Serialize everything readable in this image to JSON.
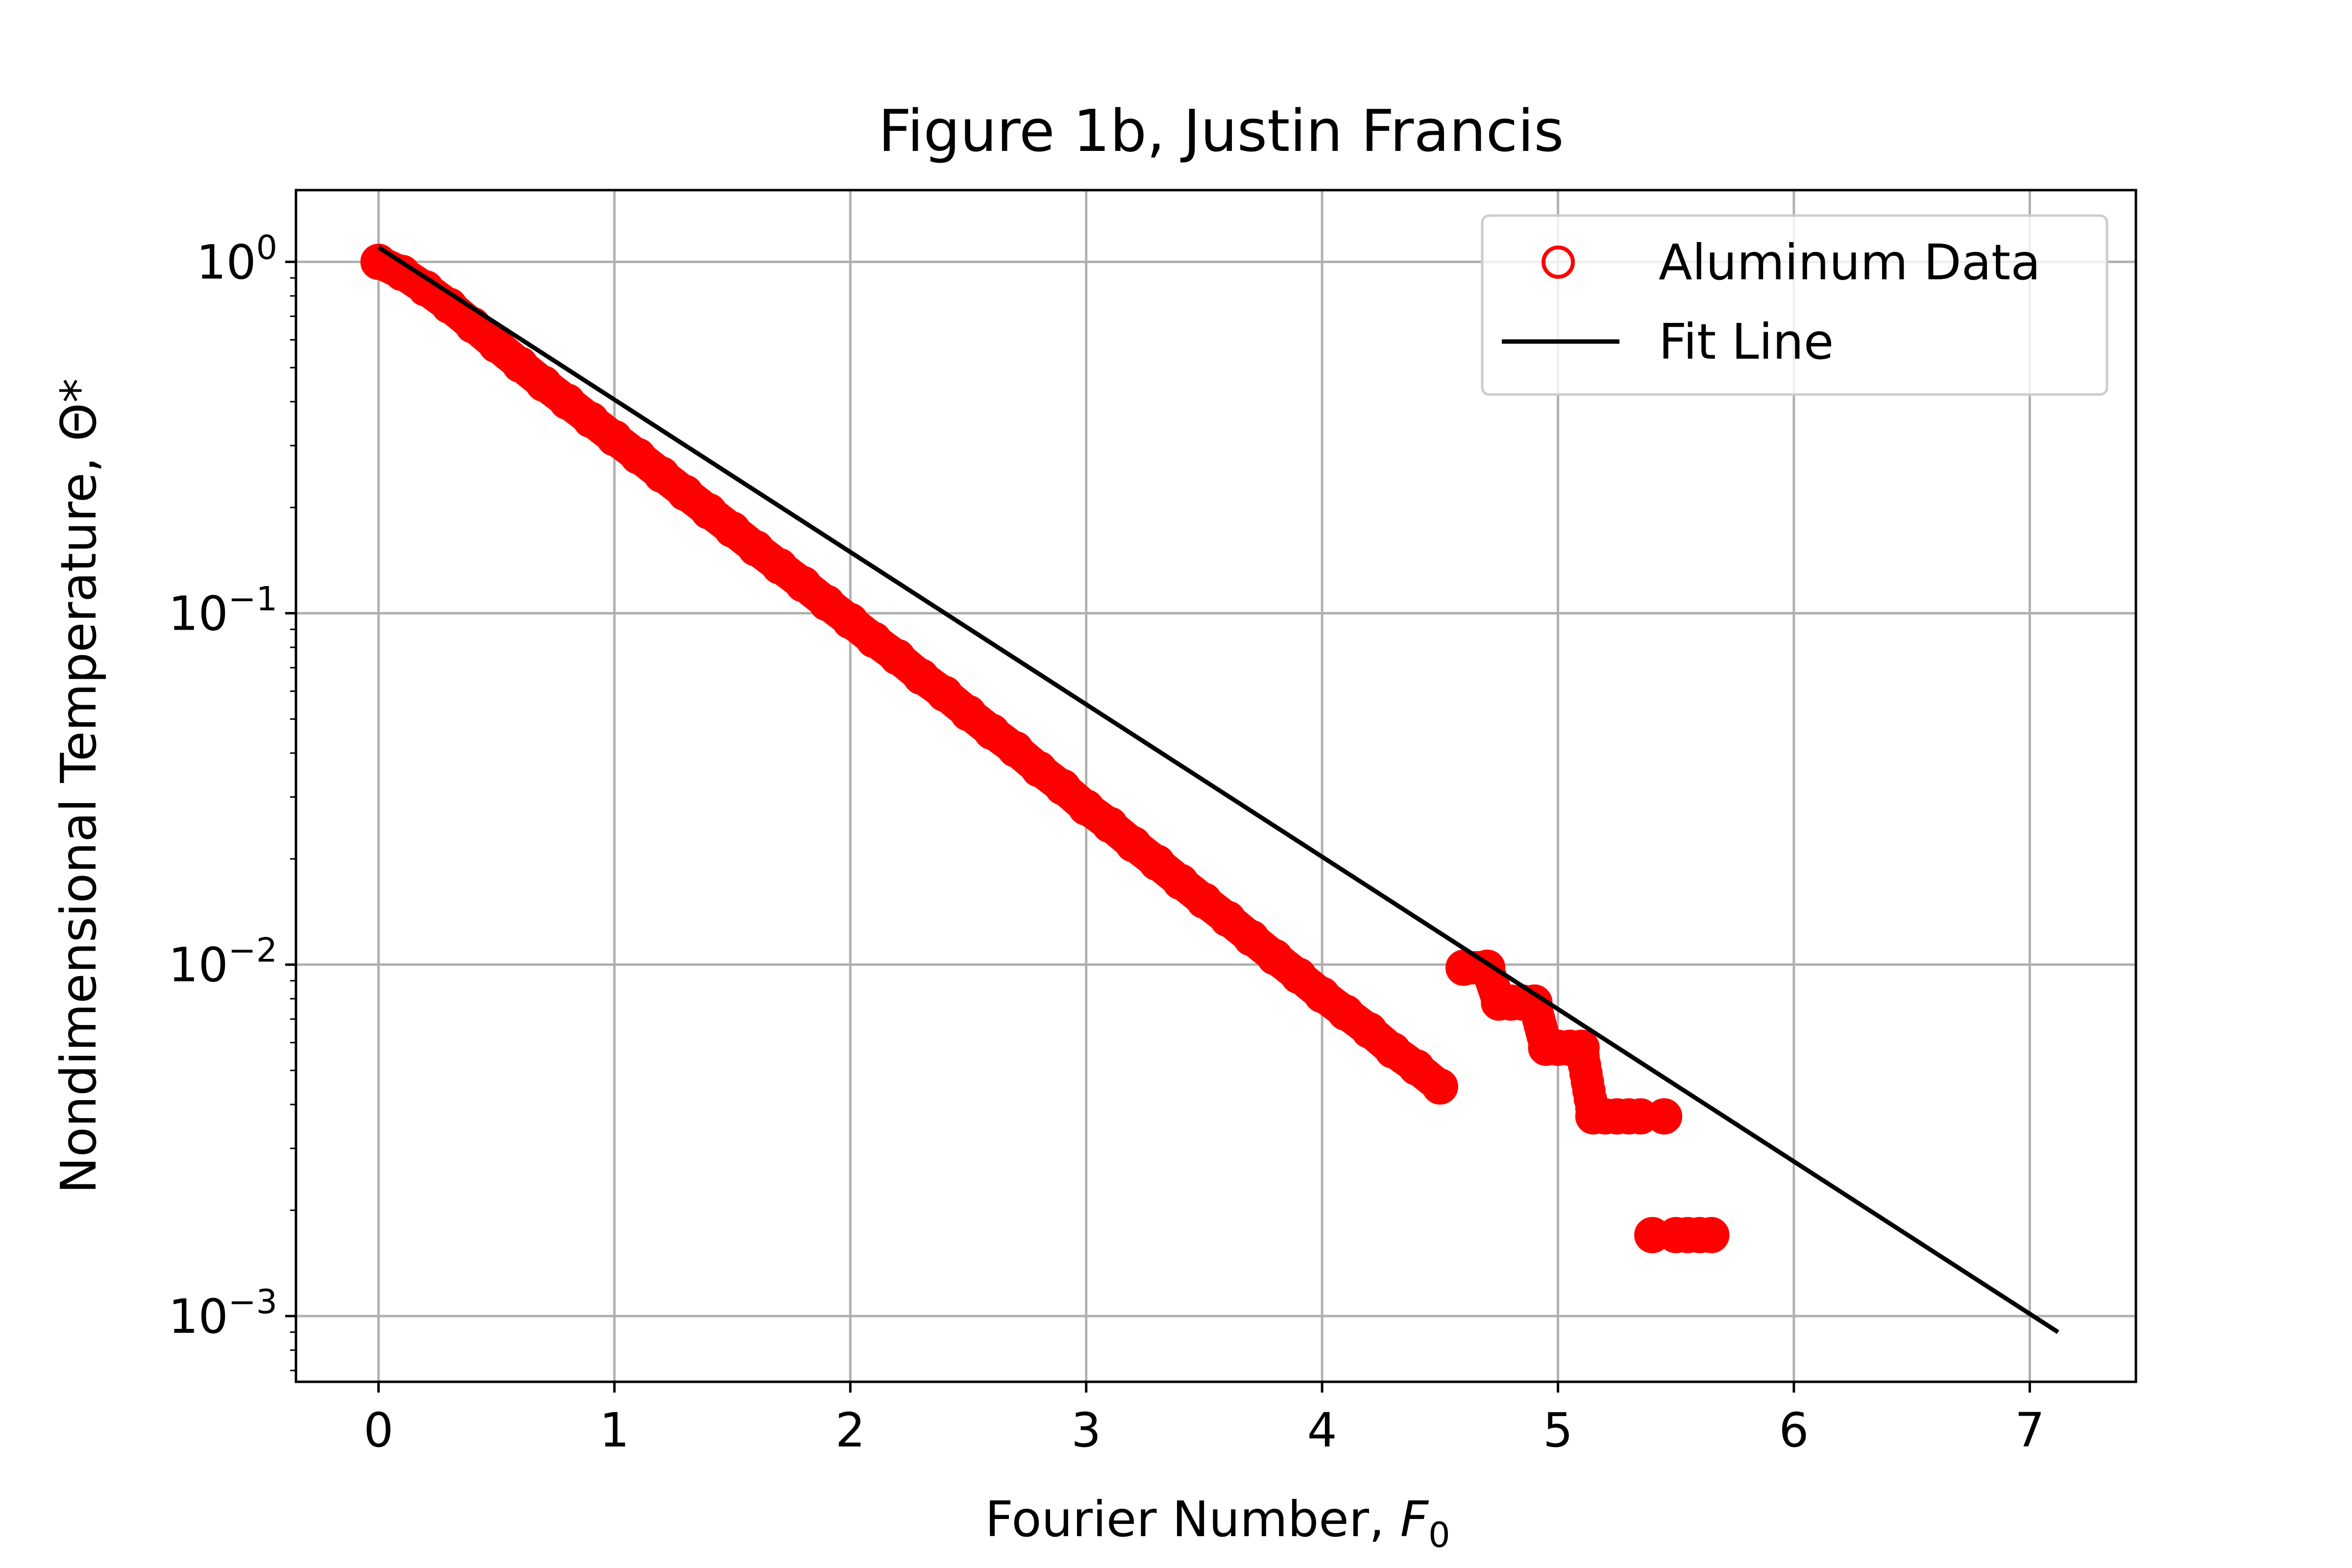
{
  "chart_data": {
    "type": "scatter",
    "title": "Figure 1b, Justin Francis",
    "xlabel": "Fourier Number, ",
    "xlabel_symbol": "F",
    "xlabel_subscript": "0",
    "ylabel": "Nondimensional Temperature, Θ*",
    "x_scale": "linear",
    "y_scale": "log",
    "xlim": [
      -0.35,
      7.45
    ],
    "ylim": [
      0.00065,
      1.6
    ],
    "x_ticks": [
      0,
      1,
      2,
      3,
      4,
      5,
      6,
      7
    ],
    "x_tick_labels": [
      "0",
      "1",
      "2",
      "3",
      "4",
      "5",
      "6",
      "7"
    ],
    "y_ticks": [
      1,
      0.1,
      0.01,
      0.001
    ],
    "y_tick_labels": [
      {
        "base": "10",
        "exp": "0"
      },
      {
        "base": "10",
        "exp": "−1"
      },
      {
        "base": "10",
        "exp": "−2"
      },
      {
        "base": "10",
        "exp": "−3"
      }
    ],
    "grid": true,
    "legend_position": "top-right",
    "legend": [
      {
        "label": "Aluminum Data",
        "marker": "open-circle",
        "color": "#ff0000"
      },
      {
        "label": "Fit Line",
        "marker": "line",
        "color": "#000000"
      }
    ],
    "series": [
      {
        "name": "Aluminum Data",
        "kind": "scatter",
        "color": "#ff0000",
        "x": [
          0.0,
          0.1,
          0.2,
          0.3,
          0.4,
          0.5,
          0.6,
          0.7,
          0.8,
          0.9,
          1.0,
          1.1,
          1.2,
          1.3,
          1.4,
          1.5,
          1.6,
          1.7,
          1.8,
          1.9,
          2.0,
          2.1,
          2.2,
          2.3,
          2.4,
          2.5,
          2.6,
          2.7,
          2.8,
          2.9,
          3.0,
          3.1,
          3.2,
          3.3,
          3.4,
          3.5,
          3.6,
          3.7,
          3.8,
          3.9,
          4.0,
          4.1,
          4.2,
          4.3,
          4.4,
          4.5,
          4.6,
          4.7,
          4.75,
          4.8,
          4.85,
          4.9,
          4.95,
          5.0,
          5.05,
          5.1,
          5.15,
          5.2,
          5.25,
          5.3,
          5.35,
          5.4,
          5.45,
          5.5,
          5.55,
          5.6,
          5.65
        ],
        "y": [
          1.0,
          0.93,
          0.84,
          0.75,
          0.66,
          0.58,
          0.51,
          0.45,
          0.4,
          0.355,
          0.315,
          0.28,
          0.248,
          0.22,
          0.195,
          0.173,
          0.153,
          0.136,
          0.121,
          0.107,
          0.095,
          0.084,
          0.075,
          0.066,
          0.059,
          0.052,
          0.046,
          0.041,
          0.036,
          0.032,
          0.028,
          0.025,
          0.022,
          0.0195,
          0.0172,
          0.0152,
          0.0135,
          0.0119,
          0.0105,
          0.0093,
          0.0082,
          0.0073,
          0.0065,
          0.0057,
          0.0051,
          0.0045,
          0.0098,
          0.0098,
          0.0078,
          0.0078,
          0.0078,
          0.0078,
          0.0058,
          0.0058,
          0.0058,
          0.0058,
          0.0037,
          0.0037,
          0.0037,
          0.0037,
          0.0037,
          0.0017,
          0.0037,
          0.0017,
          0.0017,
          0.0017,
          0.0017
        ]
      },
      {
        "name": "Fit Line",
        "kind": "line",
        "color": "#000000",
        "x": [
          0.0,
          7.12
        ],
        "y": [
          1.1,
          0.0009
        ]
      }
    ]
  }
}
